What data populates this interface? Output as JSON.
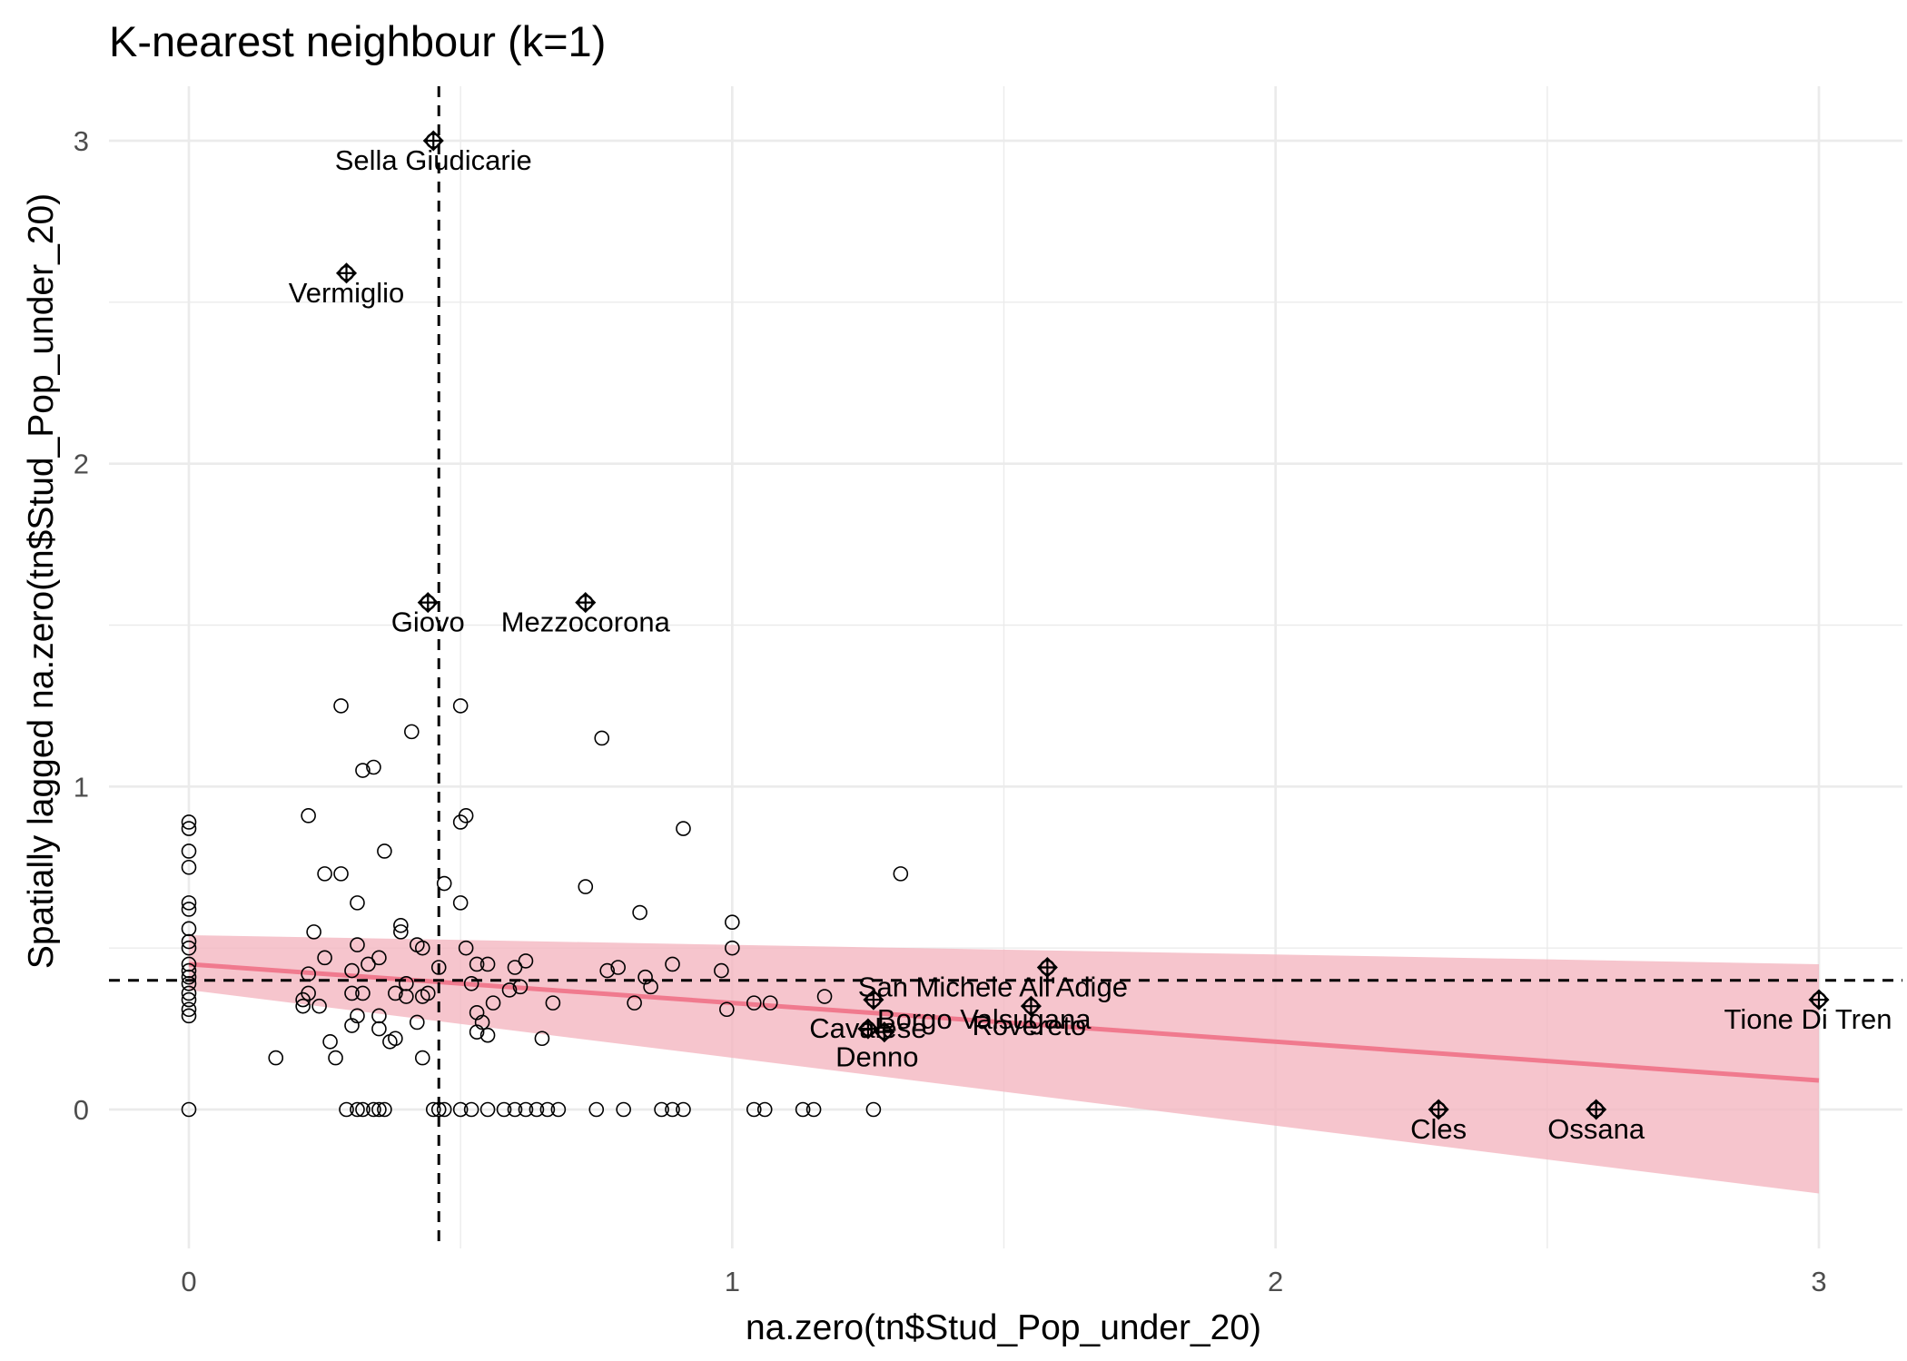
{
  "chart_data": {
    "type": "scatter",
    "title": "K-nearest neighbour (k=1)",
    "xlabel": "na.zero(tn$Stud_Pop_under_20)",
    "ylabel": "Spatially lagged na.zero(tn$Stud_Pop_under_20)",
    "xlim": [
      -0.3,
      3.15
    ],
    "ylim": [
      -0.43,
      3.2
    ],
    "x_ticks": [
      "0",
      "1",
      "2",
      "3"
    ],
    "y_ticks": [
      "0",
      "1",
      "2",
      "3"
    ],
    "grid": true,
    "mean_x": 0.46,
    "mean_y": 0.4,
    "regression": {
      "intercept": 0.45,
      "slope": -0.12,
      "color": "#F07A8E",
      "band_color": "#F4B6C0",
      "band_at_x0": [
        0.37,
        0.54
      ],
      "band_at_x3": [
        -0.26,
        0.45
      ]
    },
    "points": [
      {
        "x": 0,
        "y": 0
      },
      {
        "x": 0,
        "y": 0.29
      },
      {
        "x": 0,
        "y": 0.31
      },
      {
        "x": 0,
        "y": 0.34
      },
      {
        "x": 0,
        "y": 0.36
      },
      {
        "x": 0,
        "y": 0.39
      },
      {
        "x": 0,
        "y": 0.41
      },
      {
        "x": 0,
        "y": 0.43
      },
      {
        "x": 0,
        "y": 0.45
      },
      {
        "x": 0,
        "y": 0.5
      },
      {
        "x": 0,
        "y": 0.52
      },
      {
        "x": 0,
        "y": 0.56
      },
      {
        "x": 0,
        "y": 0.62
      },
      {
        "x": 0,
        "y": 0.64
      },
      {
        "x": 0,
        "y": 0.75
      },
      {
        "x": 0,
        "y": 0.8
      },
      {
        "x": 0,
        "y": 0.87
      },
      {
        "x": 0,
        "y": 0.89
      },
      {
        "x": 0.16,
        "y": 0.16
      },
      {
        "x": 0.21,
        "y": 0.32
      },
      {
        "x": 0.21,
        "y": 0.34
      },
      {
        "x": 0.22,
        "y": 0.42
      },
      {
        "x": 0.22,
        "y": 0.36
      },
      {
        "x": 0.22,
        "y": 0.91
      },
      {
        "x": 0.23,
        "y": 0.55
      },
      {
        "x": 0.24,
        "y": 0.32
      },
      {
        "x": 0.25,
        "y": 0.47
      },
      {
        "x": 0.25,
        "y": 0.73
      },
      {
        "x": 0.26,
        "y": 0.21
      },
      {
        "x": 0.27,
        "y": 0.16
      },
      {
        "x": 0.28,
        "y": 0.73
      },
      {
        "x": 0.28,
        "y": 1.25
      },
      {
        "x": 0.3,
        "y": 0.26
      },
      {
        "x": 0.3,
        "y": 0.36
      },
      {
        "x": 0.3,
        "y": 0.43
      },
      {
        "x": 0.31,
        "y": 0.29
      },
      {
        "x": 0.31,
        "y": 0.51
      },
      {
        "x": 0.31,
        "y": 0.64
      },
      {
        "x": 0.32,
        "y": 0.36
      },
      {
        "x": 0.32,
        "y": 1.05
      },
      {
        "x": 0.33,
        "y": 0.45
      },
      {
        "x": 0.34,
        "y": 1.06
      },
      {
        "x": 0.35,
        "y": 0.25
      },
      {
        "x": 0.35,
        "y": 0.29
      },
      {
        "x": 0.35,
        "y": 0.47
      },
      {
        "x": 0.36,
        "y": 0.8
      },
      {
        "x": 0.37,
        "y": 0.21
      },
      {
        "x": 0.38,
        "y": 0.22
      },
      {
        "x": 0.38,
        "y": 0.36
      },
      {
        "x": 0.39,
        "y": 0.55
      },
      {
        "x": 0.39,
        "y": 0.57
      },
      {
        "x": 0.4,
        "y": 0.35
      },
      {
        "x": 0.4,
        "y": 0.39
      },
      {
        "x": 0.41,
        "y": 1.17
      },
      {
        "x": 0.42,
        "y": 0.27
      },
      {
        "x": 0.42,
        "y": 0.51
      },
      {
        "x": 0.43,
        "y": 0.16
      },
      {
        "x": 0.43,
        "y": 0.35
      },
      {
        "x": 0.43,
        "y": 0.5
      },
      {
        "x": 0.44,
        "y": 0.36
      },
      {
        "x": 0.46,
        "y": 0.44
      },
      {
        "x": 0.47,
        "y": 0.7
      },
      {
        "x": 0.5,
        "y": 0.89
      },
      {
        "x": 0.5,
        "y": 1.25
      },
      {
        "x": 0.5,
        "y": 0.64
      },
      {
        "x": 0.51,
        "y": 0.91
      },
      {
        "x": 0.51,
        "y": 0.5
      },
      {
        "x": 0.52,
        "y": 0.39
      },
      {
        "x": 0.53,
        "y": 0.24
      },
      {
        "x": 0.53,
        "y": 0.3
      },
      {
        "x": 0.53,
        "y": 0.45
      },
      {
        "x": 0.54,
        "y": 0.27
      },
      {
        "x": 0.55,
        "y": 0.23
      },
      {
        "x": 0.55,
        "y": 0.45
      },
      {
        "x": 0.56,
        "y": 0.33
      },
      {
        "x": 0.59,
        "y": 0.37
      },
      {
        "x": 0.6,
        "y": 0.44
      },
      {
        "x": 0.61,
        "y": 0.38
      },
      {
        "x": 0.62,
        "y": 0.46
      },
      {
        "x": 0.65,
        "y": 0.22
      },
      {
        "x": 0.67,
        "y": 0.33
      },
      {
        "x": 0.73,
        "y": 0.69
      },
      {
        "x": 0.76,
        "y": 1.15
      },
      {
        "x": 0.77,
        "y": 0.43
      },
      {
        "x": 0.79,
        "y": 0.44
      },
      {
        "x": 0.82,
        "y": 0.33
      },
      {
        "x": 0.83,
        "y": 0.61
      },
      {
        "x": 0.84,
        "y": 0.41
      },
      {
        "x": 0.85,
        "y": 0.38
      },
      {
        "x": 0.89,
        "y": 0.45
      },
      {
        "x": 0.91,
        "y": 0.87
      },
      {
        "x": 0.98,
        "y": 0.43
      },
      {
        "x": 0.99,
        "y": 0.31
      },
      {
        "x": 1,
        "y": 0.58
      },
      {
        "x": 1,
        "y": 0.5
      },
      {
        "x": 1.04,
        "y": 0.33
      },
      {
        "x": 1.07,
        "y": 0.33
      },
      {
        "x": 1.17,
        "y": 0.35
      },
      {
        "x": 1.31,
        "y": 0.73
      },
      {
        "x": 0.29,
        "y": 0
      },
      {
        "x": 0.31,
        "y": 0
      },
      {
        "x": 0.32,
        "y": 0
      },
      {
        "x": 0.34,
        "y": 0
      },
      {
        "x": 0.35,
        "y": 0
      },
      {
        "x": 0.36,
        "y": 0
      },
      {
        "x": 0.45,
        "y": 0
      },
      {
        "x": 0.46,
        "y": 0
      },
      {
        "x": 0.47,
        "y": 0
      },
      {
        "x": 0.5,
        "y": 0
      },
      {
        "x": 0.52,
        "y": 0
      },
      {
        "x": 0.55,
        "y": 0
      },
      {
        "x": 0.58,
        "y": 0
      },
      {
        "x": 0.6,
        "y": 0
      },
      {
        "x": 0.62,
        "y": 0
      },
      {
        "x": 0.64,
        "y": 0
      },
      {
        "x": 0.66,
        "y": 0
      },
      {
        "x": 0.68,
        "y": 0
      },
      {
        "x": 0.75,
        "y": 0
      },
      {
        "x": 0.8,
        "y": 0
      },
      {
        "x": 0.87,
        "y": 0
      },
      {
        "x": 0.89,
        "y": 0
      },
      {
        "x": 0.91,
        "y": 0
      },
      {
        "x": 1.04,
        "y": 0
      },
      {
        "x": 1.06,
        "y": 0
      },
      {
        "x": 1.13,
        "y": 0
      },
      {
        "x": 1.15,
        "y": 0
      },
      {
        "x": 1.26,
        "y": 0
      }
    ],
    "influential": [
      {
        "x": 0.45,
        "y": 3.0,
        "label": "Sella Giudicarie",
        "anchor": "middle",
        "dx": 0,
        "dy": 32
      },
      {
        "x": 0.29,
        "y": 2.59,
        "label": "Vermiglio",
        "anchor": "middle",
        "dx": 0,
        "dy": 32
      },
      {
        "x": 0.44,
        "y": 1.57,
        "label": "Giovo",
        "anchor": "middle",
        "dx": 0,
        "dy": 32
      },
      {
        "x": 0.73,
        "y": 1.57,
        "label": "Mezzocorona",
        "anchor": "middle",
        "dx": 0,
        "dy": 32
      },
      {
        "x": 1.58,
        "y": 0.44,
        "label": "San Michele All'Adige",
        "anchor": "middle",
        "dx": -60,
        "dy": 32
      },
      {
        "x": 1.26,
        "y": 0.34,
        "label": "Borgo Valsugana",
        "anchor": "start",
        "dx": 4,
        "dy": 32
      },
      {
        "x": 1.55,
        "y": 0.32,
        "label": "Rovereto",
        "anchor": "middle",
        "dx": -2,
        "dy": 32
      },
      {
        "x": 1.25,
        "y": 0.25,
        "label": "Cavalese",
        "anchor": "middle",
        "dx": 0,
        "dy": 10
      },
      {
        "x": 1.28,
        "y": 0.24,
        "label": "Denno",
        "anchor": "middle",
        "dx": -8,
        "dy": 38
      },
      {
        "x": 3.0,
        "y": 0.34,
        "label": "Tione Di Tren",
        "anchor": "middle",
        "dx": -12,
        "dy": 32
      },
      {
        "x": 2.3,
        "y": 0,
        "label": "Cles",
        "anchor": "middle",
        "dx": 0,
        "dy": 32
      },
      {
        "x": 2.59,
        "y": 0,
        "label": "Ossana",
        "anchor": "middle",
        "dx": 0,
        "dy": 32
      }
    ]
  }
}
